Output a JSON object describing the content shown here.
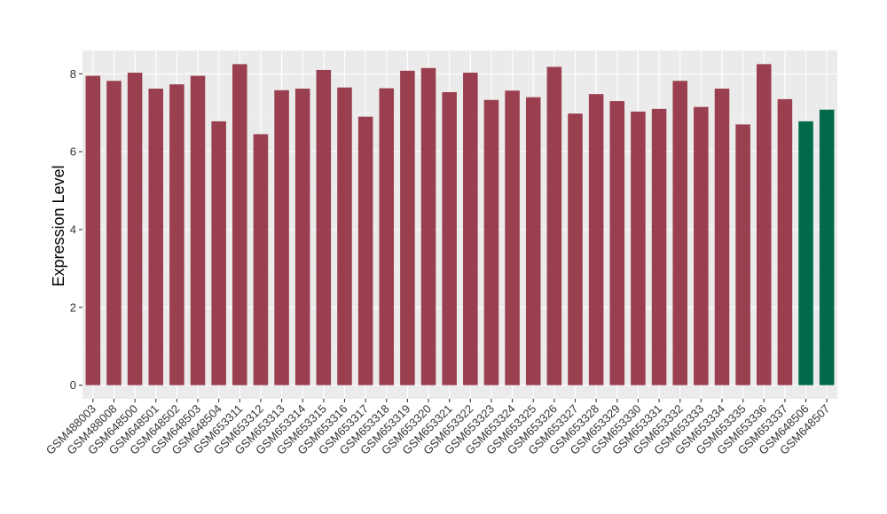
{
  "chart_data": {
    "type": "bar",
    "title": "",
    "xlabel": "",
    "ylabel": "Expression Level",
    "ylim": [
      -0.35,
      8.6
    ],
    "yticks": [
      0,
      2,
      4,
      6,
      8
    ],
    "grid": true,
    "legend": "none",
    "categories": [
      "GSM488003",
      "GSM488008",
      "GSM648500",
      "GSM648501",
      "GSM648502",
      "GSM648503",
      "GSM648504",
      "GSM653311",
      "GSM653312",
      "GSM653313",
      "GSM653314",
      "GSM653315",
      "GSM653316",
      "GSM653317",
      "GSM653318",
      "GSM653319",
      "GSM653320",
      "GSM653321",
      "GSM653322",
      "GSM653323",
      "GSM653324",
      "GSM653325",
      "GSM653326",
      "GSM653327",
      "GSM653328",
      "GSM653329",
      "GSM653330",
      "GSM653331",
      "GSM653332",
      "GSM653333",
      "GSM653334",
      "GSM653335",
      "GSM653336",
      "GSM653337",
      "GSM648506",
      "GSM648507"
    ],
    "values": [
      7.95,
      7.82,
      8.03,
      7.62,
      7.73,
      7.95,
      6.78,
      8.25,
      6.45,
      7.58,
      7.62,
      8.1,
      7.65,
      6.9,
      7.63,
      8.08,
      8.15,
      7.53,
      8.03,
      7.33,
      7.57,
      7.4,
      8.18,
      6.98,
      7.48,
      7.3,
      7.03,
      7.1,
      7.82,
      7.15,
      7.62,
      6.7,
      8.25,
      7.35,
      6.78,
      7.08
    ],
    "group": [
      "a",
      "a",
      "a",
      "a",
      "a",
      "a",
      "a",
      "a",
      "a",
      "a",
      "a",
      "a",
      "a",
      "a",
      "a",
      "a",
      "a",
      "a",
      "a",
      "a",
      "a",
      "a",
      "a",
      "a",
      "a",
      "a",
      "a",
      "a",
      "a",
      "a",
      "a",
      "a",
      "a",
      "a",
      "b",
      "b"
    ],
    "colors": {
      "a": "#9a3f4f",
      "b": "#006a4a",
      "panel": "#ebebeb",
      "grid_major": "#ffffff",
      "grid_minor": "#f5f5f5"
    }
  }
}
